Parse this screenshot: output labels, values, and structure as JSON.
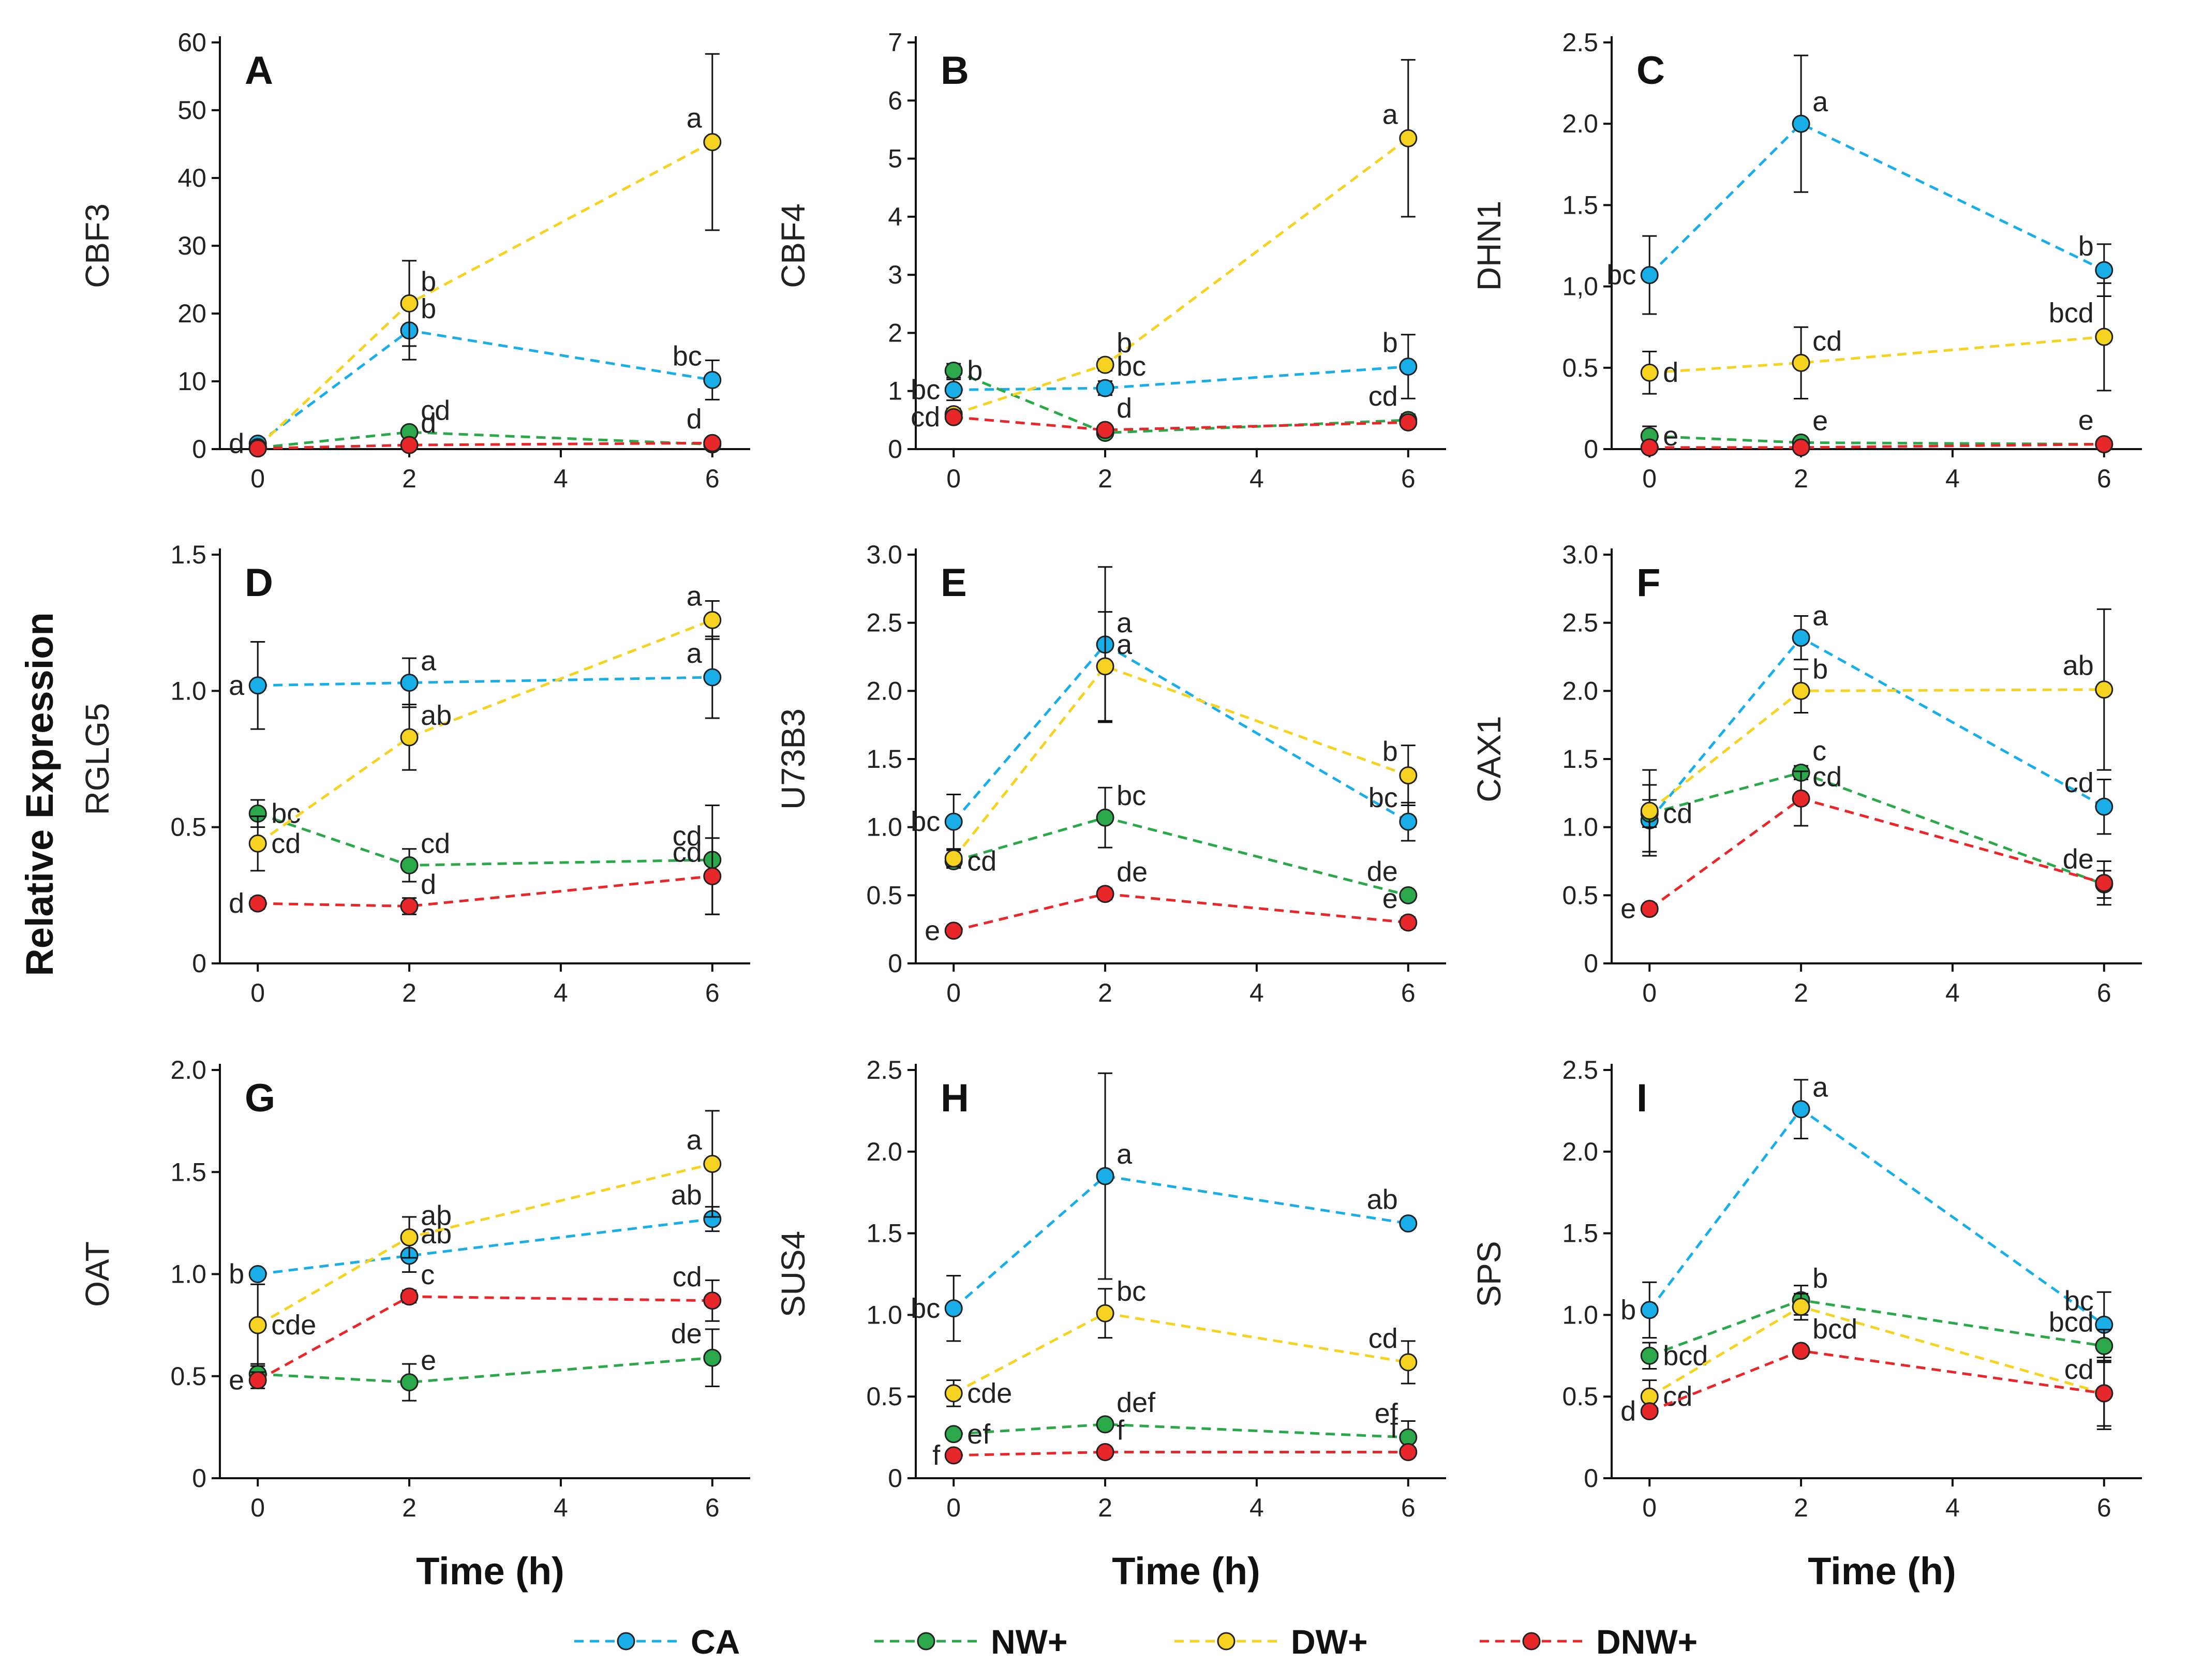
{
  "common_ylabel": "Relative Expression",
  "legend": [
    {
      "name": "CA",
      "color": "#1aaee8"
    },
    {
      "name": "NW+",
      "color": "#2aa84a"
    },
    {
      "name": "DW+",
      "color": "#f5d320"
    },
    {
      "name": "DNW+",
      "color": "#e8272a"
    }
  ],
  "chart_data": [
    {
      "type": "line",
      "panel": "A",
      "ylabel": "CBF3",
      "xlabel": "",
      "x": [
        0,
        2,
        6
      ],
      "xticks": [
        0,
        2,
        4,
        6
      ],
      "xlim": [
        -0.5,
        6.5
      ],
      "ylim": [
        0,
        60
      ],
      "yticks": [
        "0",
        "10",
        "20",
        "30",
        "40",
        "50",
        "60"
      ],
      "series": [
        {
          "name": "CA",
          "values": [
            0.8,
            17.5,
            10.2
          ],
          "err": [
            0.5,
            4.3,
            2.9
          ],
          "labels": [
            "d",
            "b",
            "bc"
          ]
        },
        {
          "name": "NW+",
          "values": [
            0.2,
            2.5,
            0.7
          ],
          "err": [
            0.2,
            0.5,
            0.2
          ],
          "labels": [
            "",
            "cd",
            ""
          ]
        },
        {
          "name": "DW+",
          "values": [
            0.3,
            21.5,
            45.3
          ],
          "err": [
            0.2,
            6.3,
            13.0
          ],
          "labels": [
            "",
            "b",
            "a"
          ]
        },
        {
          "name": "DNW+",
          "values": [
            0.1,
            0.6,
            0.9
          ],
          "err": [
            0.1,
            0.3,
            0.3
          ],
          "labels": [
            "",
            "d",
            "d"
          ]
        }
      ]
    },
    {
      "type": "line",
      "panel": "B",
      "ylabel": "CBF4",
      "xlabel": "",
      "x": [
        0,
        2,
        6
      ],
      "xticks": [
        0,
        2,
        4,
        6
      ],
      "xlim": [
        -0.5,
        6.5
      ],
      "ylim": [
        0,
        7
      ],
      "yticks": [
        "0",
        "1",
        "2",
        "3",
        "4",
        "5",
        "6",
        "7"
      ],
      "series": [
        {
          "name": "CA",
          "values": [
            1.02,
            1.05,
            1.42
          ],
          "err": [
            0.18,
            0.12,
            0.55
          ],
          "labels": [
            "bc",
            "bc",
            "b"
          ]
        },
        {
          "name": "NW+",
          "values": [
            1.35,
            0.28,
            0.5
          ],
          "err": [
            0.12,
            0.05,
            0.1
          ],
          "labels": [
            "b",
            "",
            "cd"
          ]
        },
        {
          "name": "DW+",
          "values": [
            0.6,
            1.45,
            5.35
          ],
          "err": [
            0.1,
            0.1,
            1.35
          ],
          "labels": [
            "",
            "b",
            "a"
          ]
        },
        {
          "name": "DNW+",
          "values": [
            0.55,
            0.33,
            0.46
          ],
          "err": [
            0.08,
            0.05,
            0.08
          ],
          "labels": [
            "cd",
            "d",
            ""
          ]
        }
      ]
    },
    {
      "type": "line",
      "panel": "C",
      "ylabel": "DHN1",
      "xlabel": "",
      "x": [
        0,
        2,
        6
      ],
      "xticks": [
        0,
        2,
        4,
        6
      ],
      "xlim": [
        -0.5,
        6.5
      ],
      "ylim": [
        0,
        2.5
      ],
      "yticks": [
        "0",
        "0.5",
        "1,0",
        "1.5",
        "2.0",
        "2.5"
      ],
      "series": [
        {
          "name": "CA",
          "values": [
            1.07,
            2.0,
            1.1
          ],
          "err": [
            0.24,
            0.42,
            0.16
          ],
          "labels": [
            "bc",
            "a",
            "b"
          ]
        },
        {
          "name": "NW+",
          "values": [
            0.08,
            0.04,
            0.03
          ],
          "err": [
            0.06,
            0.03,
            0.02
          ],
          "labels": [
            "e",
            "e",
            "e"
          ]
        },
        {
          "name": "DW+",
          "values": [
            0.47,
            0.53,
            0.69
          ],
          "err": [
            0.13,
            0.22,
            0.33
          ],
          "labels": [
            "d",
            "cd",
            "bcd"
          ]
        },
        {
          "name": "DNW+",
          "values": [
            0.01,
            0.01,
            0.03
          ],
          "err": [
            0.01,
            0.01,
            0.01
          ],
          "labels": [
            "",
            "",
            ""
          ]
        }
      ]
    },
    {
      "type": "line",
      "panel": "D",
      "ylabel": "RGLG5",
      "xlabel": "",
      "x": [
        0,
        2,
        6
      ],
      "xticks": [
        0,
        2,
        4,
        6
      ],
      "xlim": [
        -0.5,
        6.5
      ],
      "ylim": [
        0,
        1.5
      ],
      "yticks": [
        "0",
        "0.5",
        "1.0",
        "1.5"
      ],
      "series": [
        {
          "name": "CA",
          "values": [
            1.02,
            1.03,
            1.05
          ],
          "err": [
            0.16,
            0.09,
            0.15
          ],
          "labels": [
            "a",
            "a",
            "a"
          ]
        },
        {
          "name": "NW+",
          "values": [
            0.55,
            0.36,
            0.38
          ],
          "err": [
            0.05,
            0.06,
            0.2
          ],
          "labels": [
            "bc",
            "cd",
            "cd"
          ]
        },
        {
          "name": "DW+",
          "values": [
            0.44,
            0.83,
            1.26
          ],
          "err": [
            0.1,
            0.12,
            0.07
          ],
          "labels": [
            "cd",
            "ab",
            "a"
          ]
        },
        {
          "name": "DNW+",
          "values": [
            0.22,
            0.21,
            0.32
          ],
          "err": [
            0.02,
            0.03,
            0.14
          ],
          "labels": [
            "d",
            "d",
            "cd"
          ]
        }
      ]
    },
    {
      "type": "line",
      "panel": "E",
      "ylabel": "U73B3",
      "xlabel": "",
      "x": [
        0,
        2,
        6
      ],
      "xticks": [
        0,
        2,
        4,
        6
      ],
      "xlim": [
        -0.5,
        6.5
      ],
      "ylim": [
        0,
        3.0
      ],
      "yticks": [
        "0",
        "0.5",
        "1.0",
        "1.5",
        "2.0",
        "2.5",
        "3.0"
      ],
      "series": [
        {
          "name": "CA",
          "values": [
            1.04,
            2.34,
            1.04
          ],
          "err": [
            0.2,
            0.57,
            0.14
          ],
          "labels": [
            "bc",
            "a",
            "bc"
          ]
        },
        {
          "name": "NW+",
          "values": [
            0.75,
            1.07,
            0.5
          ],
          "err": [
            0.05,
            0.22,
            0.03
          ],
          "labels": [
            "cd",
            "bc",
            "de"
          ]
        },
        {
          "name": "DW+",
          "values": [
            0.77,
            2.18,
            1.38
          ],
          "err": [
            0.06,
            0.4,
            0.22
          ],
          "labels": [
            "",
            "a",
            "b"
          ]
        },
        {
          "name": "DNW+",
          "values": [
            0.24,
            0.51,
            0.3
          ],
          "err": [
            0.02,
            0.04,
            0.04
          ],
          "labels": [
            "e",
            "de",
            "e"
          ]
        }
      ]
    },
    {
      "type": "line",
      "panel": "F",
      "ylabel": "CAX1",
      "xlabel": "",
      "x": [
        0,
        2,
        6
      ],
      "xticks": [
        0,
        2,
        4,
        6
      ],
      "xlim": [
        -0.5,
        6.5
      ],
      "ylim": [
        0,
        3.0
      ],
      "yticks": [
        "0",
        "0.5",
        "1.0",
        "1.5",
        "2.0",
        "2.5",
        "3.0"
      ],
      "series": [
        {
          "name": "CA",
          "values": [
            1.05,
            2.39,
            1.15
          ],
          "err": [
            0.26,
            0.16,
            0.2
          ],
          "labels": [
            "",
            "a",
            "cd"
          ]
        },
        {
          "name": "NW+",
          "values": [
            1.1,
            1.4,
            0.58
          ],
          "err": [
            0.1,
            0.05,
            0.1
          ],
          "labels": [
            "cd",
            "c",
            ""
          ]
        },
        {
          "name": "DW+",
          "values": [
            1.12,
            2.0,
            2.01
          ],
          "err": [
            0.3,
            0.16,
            0.59
          ],
          "labels": [
            "",
            "b",
            "ab"
          ]
        },
        {
          "name": "DNW+",
          "values": [
            0.4,
            1.21,
            0.59
          ],
          "err": [
            0.03,
            0.2,
            0.16
          ],
          "labels": [
            "e",
            "cd",
            "de"
          ]
        }
      ]
    },
    {
      "type": "line",
      "panel": "G",
      "ylabel": "OAT",
      "xlabel": "Time (h)",
      "x": [
        0,
        2,
        6
      ],
      "xticks": [
        0,
        2,
        4,
        6
      ],
      "xlim": [
        -0.5,
        6.5
      ],
      "ylim": [
        0,
        2.0
      ],
      "yticks": [
        "0",
        "0.5",
        "1.0",
        "1.5",
        "2.0"
      ],
      "series": [
        {
          "name": "CA",
          "values": [
            1.0,
            1.09,
            1.27
          ],
          "err": [
            0.02,
            0.08,
            0.06
          ],
          "labels": [
            "b",
            "ab",
            "ab"
          ]
        },
        {
          "name": "NW+",
          "values": [
            0.51,
            0.47,
            0.59
          ],
          "err": [
            0.05,
            0.09,
            0.14
          ],
          "labels": [
            "",
            "e",
            "de"
          ]
        },
        {
          "name": "DW+",
          "values": [
            0.75,
            1.18,
            1.54
          ],
          "err": [
            0.2,
            0.1,
            0.26
          ],
          "labels": [
            "cde",
            "ab",
            "a"
          ]
        },
        {
          "name": "DNW+",
          "values": [
            0.48,
            0.89,
            0.87
          ],
          "err": [
            0.04,
            0.03,
            0.1
          ],
          "labels": [
            "e",
            "c",
            "cd"
          ]
        }
      ]
    },
    {
      "type": "line",
      "panel": "H",
      "ylabel": "SUS4",
      "xlabel": "Time (h)",
      "x": [
        0,
        2,
        6
      ],
      "xticks": [
        0,
        2,
        4,
        6
      ],
      "xlim": [
        -0.5,
        6.5
      ],
      "ylim": [
        0,
        2.5
      ],
      "yticks": [
        "0",
        "0.5",
        "1.0",
        "1.5",
        "2.0",
        "2.5"
      ],
      "series": [
        {
          "name": "CA",
          "values": [
            1.04,
            1.85,
            1.56
          ],
          "err": [
            0.2,
            0.63,
            0.03
          ],
          "labels": [
            "bc",
            "a",
            "ab"
          ]
        },
        {
          "name": "NW+",
          "values": [
            0.27,
            0.33,
            0.25
          ],
          "err": [
            0.03,
            0.03,
            0.1
          ],
          "labels": [
            "ef",
            "def",
            "ef"
          ]
        },
        {
          "name": "DW+",
          "values": [
            0.52,
            1.01,
            0.71
          ],
          "err": [
            0.08,
            0.15,
            0.13
          ],
          "labels": [
            "cde",
            "bc",
            "cd"
          ]
        },
        {
          "name": "DNW+",
          "values": [
            0.14,
            0.16,
            0.16
          ],
          "err": [
            0.02,
            0.02,
            0.02
          ],
          "labels": [
            "f",
            "f",
            "f"
          ]
        }
      ]
    },
    {
      "type": "line",
      "panel": "I",
      "ylabel": "SPS",
      "xlabel": "Time (h)",
      "x": [
        0,
        2,
        6
      ],
      "xticks": [
        0,
        2,
        4,
        6
      ],
      "xlim": [
        -0.5,
        6.5
      ],
      "ylim": [
        0,
        2.5
      ],
      "yticks": [
        "0",
        "0.5",
        "1.0",
        "1.5",
        "2.0",
        "2.5"
      ],
      "series": [
        {
          "name": "CA",
          "values": [
            1.03,
            2.26,
            0.94
          ],
          "err": [
            0.17,
            0.18,
            0.2
          ],
          "labels": [
            "b",
            "a",
            "bc"
          ]
        },
        {
          "name": "NW+",
          "values": [
            0.75,
            1.09,
            0.81
          ],
          "err": [
            0.08,
            0.09,
            0.1
          ],
          "labels": [
            "bcd",
            "b",
            "bcd"
          ]
        },
        {
          "name": "DW+",
          "values": [
            0.5,
            1.05,
            0.52
          ],
          "err": [
            0.1,
            0.08,
            0.22
          ],
          "labels": [
            "cd",
            "",
            "cd"
          ]
        },
        {
          "name": "DNW+",
          "values": [
            0.41,
            0.78,
            0.52
          ],
          "err": [
            0.03,
            0.03,
            0.2
          ],
          "labels": [
            "d",
            "bcd",
            ""
          ]
        }
      ]
    }
  ]
}
